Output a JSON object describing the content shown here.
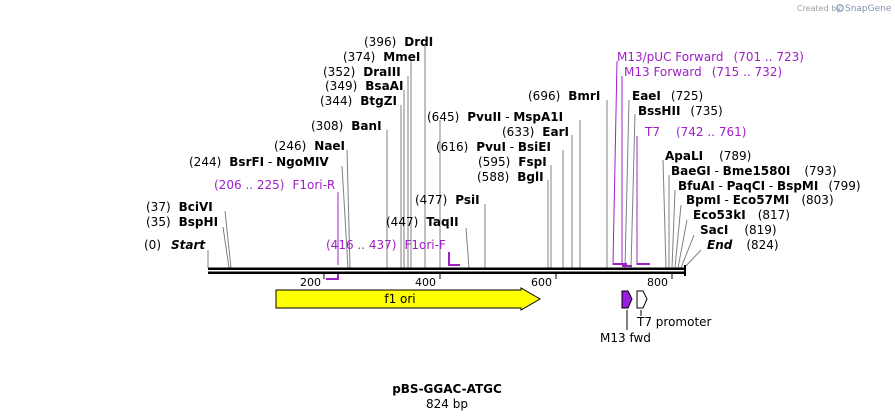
{
  "watermark": {
    "prefix": "Created by",
    "brand": "SnapGene"
  },
  "plasmid": {
    "name": "pBS-GGAC-ATGC",
    "length": "824 bp"
  },
  "axis_ticks": [
    "200",
    "400",
    "600",
    "800"
  ],
  "sites": [
    {
      "pos": "(0)",
      "name": "Start"
    },
    {
      "pos": "(35)",
      "name": "BspHI"
    },
    {
      "pos": "(37)",
      "name": "BciVI"
    },
    {
      "pos": "(244)",
      "name": "BsrFI",
      "sep": " - ",
      "name2": "NgoMIV"
    },
    {
      "pos": "(246)",
      "name": "NaeI"
    },
    {
      "pos": "(308)",
      "name": "BanI"
    },
    {
      "pos": "(344)",
      "name": "BtgZI"
    },
    {
      "pos": "(349)",
      "name": "BsaAI"
    },
    {
      "pos": "(352)",
      "name": "DraIII"
    },
    {
      "pos": "(374)",
      "name": "MmeI"
    },
    {
      "pos": "(396)",
      "name": "DrdI"
    },
    {
      "pos": "(447)",
      "name": "TaqII"
    },
    {
      "pos": "(477)",
      "name": "PsiI"
    },
    {
      "pos": "(588)",
      "name": "BglI"
    },
    {
      "pos": "(595)",
      "name": "FspI"
    },
    {
      "pos": "(616)",
      "name": "PvuI",
      "sep": " - ",
      "name2": "BsiEI"
    },
    {
      "pos": "(633)",
      "name": "EarI"
    },
    {
      "pos": "(645)",
      "name": "PvuII",
      "sep": " - ",
      "name2": "MspA1I"
    },
    {
      "pos": "(696)",
      "name": "BmrI"
    },
    {
      "name": "EaeI",
      "pos": "(725)"
    },
    {
      "name": "BssHII",
      "pos": "(735)"
    },
    {
      "name": "ApaLI",
      "pos": "(789)"
    },
    {
      "name": "BaeGI",
      "sep": " - ",
      "name2": "Bme1580I",
      "pos": "(793)"
    },
    {
      "name": "BfuAI",
      "sep": " - ",
      "name2": "PaqCI",
      "sep2": " - ",
      "name3": "BspMI",
      "pos": "(799)"
    },
    {
      "name": "BpmI",
      "sep": " - ",
      "name2": "Eco57MI",
      "pos": "(803)"
    },
    {
      "name": "Eco53kI",
      "pos": "(817)"
    },
    {
      "name": "SacI",
      "pos": "(819)"
    },
    {
      "name": "End",
      "pos": "(824)"
    }
  ],
  "primers": [
    {
      "name": "F1ori-R",
      "range": "(206 .. 225)"
    },
    {
      "name": "F1ori-F",
      "range": "(416 .. 437)"
    },
    {
      "name": "M13/pUC Forward",
      "range": "(701 .. 723)"
    },
    {
      "name": "M13 Forward",
      "range": "(715 .. 732)"
    },
    {
      "name": "T7",
      "range": "(742 .. 761)"
    }
  ],
  "features": [
    {
      "name": "f1 ori",
      "color": "#ffff00"
    },
    {
      "name": "M13 fwd",
      "color": "#9a1ee0"
    },
    {
      "name": "T7 promoter",
      "color": "#ffffff"
    }
  ],
  "colors": {
    "primer": "#a020c8",
    "line": "#808080",
    "backbone": "#000000"
  }
}
